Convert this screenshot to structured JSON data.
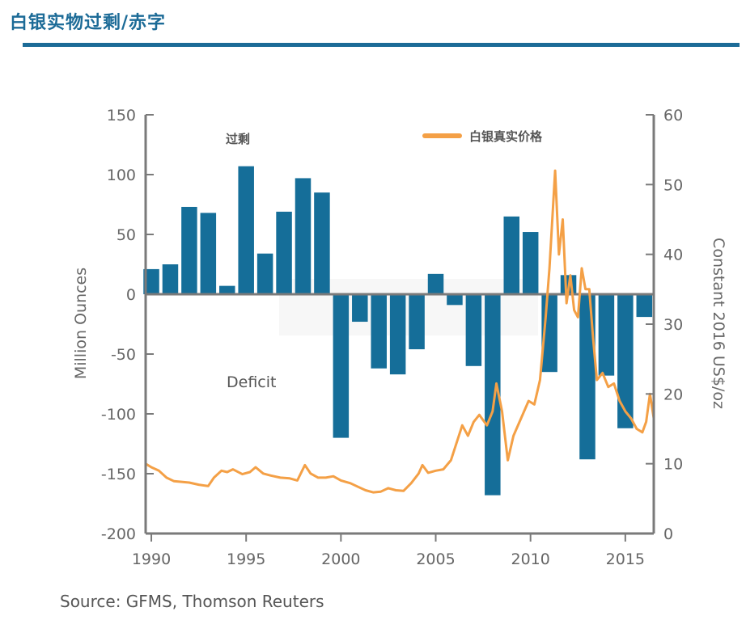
{
  "header": {
    "title": "白银实物过剩/赤字"
  },
  "source": "Source: GFMS, Thomson Reuters",
  "colors": {
    "brand": "#1c6b97",
    "bars": "#156e99",
    "price_line": "#f4a046",
    "axis": "#7a7a7a"
  },
  "chart_data": {
    "type": "bar+line",
    "annotations": {
      "surplus": "过剩",
      "deficit": "Deficit"
    },
    "legend": {
      "label": "白银真实价格",
      "position": "top-right"
    },
    "left_axis": {
      "label": "Million Ounces",
      "ylim": [
        -200,
        150
      ],
      "ticks": [
        150,
        100,
        50,
        0,
        -50,
        -100,
        -150,
        -200
      ],
      "tick_labels": [
        "150",
        "100",
        "50",
        "0",
        "-50",
        "-100",
        "-150",
        "-200"
      ]
    },
    "right_axis": {
      "label": "Constant 2016 US$/oz",
      "ylim": [
        0,
        60
      ],
      "ticks": [
        60,
        50,
        40,
        30,
        20,
        10,
        0
      ],
      "tick_labels": [
        "60",
        "50",
        "40",
        "30",
        "20",
        "10",
        "0"
      ]
    },
    "x_axis": {
      "xlim": [
        1989.7,
        2016.5
      ],
      "ticks": [
        1990,
        1995,
        2000,
        2005,
        2010,
        2015
      ],
      "tick_labels": [
        "1990",
        "1995",
        "2000",
        "2005",
        "2010",
        "2015"
      ]
    },
    "bars": {
      "axis": "left",
      "years": [
        1990,
        1991,
        1992,
        1993,
        1994,
        1995,
        1996,
        1997,
        1998,
        1999,
        2000,
        2001,
        2002,
        2003,
        2004,
        2005,
        2006,
        2007,
        2008,
        2009,
        2010,
        2011,
        2012,
        2013,
        2014,
        2015,
        2016
      ],
      "values": [
        21,
        25,
        73,
        68,
        7,
        107,
        34,
        69,
        97,
        85,
        -120,
        -23,
        -62,
        -67,
        -46,
        17,
        -9,
        -60,
        -168,
        65,
        52,
        -65,
        16,
        -138,
        -68,
        -112,
        -19
      ]
    },
    "price_series": {
      "axis": "right",
      "points": [
        [
          1989.7,
          10.0
        ],
        [
          1990.0,
          9.5
        ],
        [
          1990.4,
          9.0
        ],
        [
          1990.8,
          8.0
        ],
        [
          1991.2,
          7.5
        ],
        [
          1991.6,
          7.4
        ],
        [
          1992.0,
          7.3
        ],
        [
          1992.5,
          7.0
        ],
        [
          1993.0,
          6.8
        ],
        [
          1993.3,
          8.0
        ],
        [
          1993.7,
          9.0
        ],
        [
          1994.0,
          8.8
        ],
        [
          1994.3,
          9.2
        ],
        [
          1994.8,
          8.5
        ],
        [
          1995.2,
          8.8
        ],
        [
          1995.5,
          9.5
        ],
        [
          1995.9,
          8.6
        ],
        [
          1996.3,
          8.3
        ],
        [
          1996.8,
          8.0
        ],
        [
          1997.3,
          7.9
        ],
        [
          1997.7,
          7.6
        ],
        [
          1998.1,
          9.8
        ],
        [
          1998.4,
          8.6
        ],
        [
          1998.8,
          8.0
        ],
        [
          1999.2,
          8.0
        ],
        [
          1999.6,
          8.2
        ],
        [
          2000.0,
          7.6
        ],
        [
          2000.5,
          7.2
        ],
        [
          2000.9,
          6.7
        ],
        [
          2001.3,
          6.2
        ],
        [
          2001.7,
          5.9
        ],
        [
          2002.1,
          6.0
        ],
        [
          2002.5,
          6.5
        ],
        [
          2002.9,
          6.2
        ],
        [
          2003.3,
          6.1
        ],
        [
          2003.7,
          7.2
        ],
        [
          2004.1,
          8.6
        ],
        [
          2004.3,
          9.8
        ],
        [
          2004.6,
          8.7
        ],
        [
          2005.0,
          9.0
        ],
        [
          2005.4,
          9.2
        ],
        [
          2005.8,
          10.5
        ],
        [
          2006.1,
          13.0
        ],
        [
          2006.4,
          15.5
        ],
        [
          2006.7,
          14.0
        ],
        [
          2007.0,
          16.0
        ],
        [
          2007.3,
          17.0
        ],
        [
          2007.7,
          15.5
        ],
        [
          2008.0,
          17.5
        ],
        [
          2008.2,
          21.5
        ],
        [
          2008.5,
          17.5
        ],
        [
          2008.8,
          10.5
        ],
        [
          2009.1,
          14.0
        ],
        [
          2009.5,
          16.5
        ],
        [
          2009.9,
          19.0
        ],
        [
          2010.2,
          18.5
        ],
        [
          2010.5,
          22.0
        ],
        [
          2010.8,
          31.0
        ],
        [
          2011.0,
          38.0
        ],
        [
          2011.3,
          52.0
        ],
        [
          2011.5,
          40.0
        ],
        [
          2011.7,
          45.0
        ],
        [
          2011.9,
          33.0
        ],
        [
          2012.1,
          37.0
        ],
        [
          2012.3,
          32.0
        ],
        [
          2012.5,
          31.0
        ],
        [
          2012.7,
          38.0
        ],
        [
          2012.9,
          35.0
        ],
        [
          2013.1,
          35.0
        ],
        [
          2013.3,
          28.0
        ],
        [
          2013.5,
          22.0
        ],
        [
          2013.8,
          23.0
        ],
        [
          2014.1,
          21.0
        ],
        [
          2014.4,
          21.5
        ],
        [
          2014.7,
          19.0
        ],
        [
          2015.0,
          17.5
        ],
        [
          2015.3,
          16.5
        ],
        [
          2015.6,
          15.0
        ],
        [
          2015.9,
          14.5
        ],
        [
          2016.1,
          16.0
        ],
        [
          2016.3,
          20.0
        ],
        [
          2016.5,
          16.5
        ]
      ]
    }
  }
}
